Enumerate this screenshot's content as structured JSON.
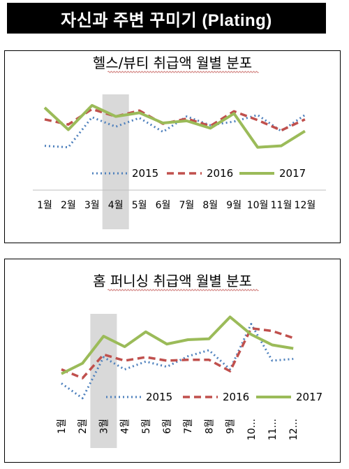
{
  "header": {
    "title": "자신과 주변 꾸미기 (Plating)"
  },
  "colors": {
    "s2015": "#4f81bd",
    "s2016": "#c0504d",
    "s2017": "#9bbb59",
    "highlight": "#d9d9d9"
  },
  "chart_data": [
    {
      "type": "line",
      "title": "헬스/뷰티 취급액 월별 분포",
      "categories": [
        "1월",
        "2월",
        "3월",
        "4월",
        "5월",
        "6월",
        "7월",
        "8월",
        "9월",
        "10월",
        "11월",
        "12월"
      ],
      "highlight_category": "4월",
      "ylim": [
        0,
        100
      ],
      "legend_position": "bottom",
      "series": [
        {
          "name": "2015",
          "values": [
            28,
            26,
            67,
            54,
            66,
            47,
            68,
            56,
            61,
            70,
            48,
            70
          ]
        },
        {
          "name": "2016",
          "values": [
            64,
            57,
            78,
            68,
            76,
            58,
            65,
            55,
            75,
            63,
            49,
            64
          ]
        },
        {
          "name": "2017",
          "values": [
            80,
            50,
            83,
            68,
            73,
            59,
            62,
            52,
            72,
            26,
            28,
            48
          ]
        }
      ]
    },
    {
      "type": "line",
      "title": "홈 퍼니싱 취급액 월별 분포",
      "categories": [
        "1월",
        "2월",
        "3월",
        "4월",
        "5월",
        "6월",
        "7월",
        "8월",
        "9월",
        "10...",
        "11...",
        "12..."
      ],
      "highlight_category": "3월",
      "ylim": [
        0,
        100
      ],
      "legend_position": "bottom",
      "series": [
        {
          "name": "2015",
          "values": [
            22,
            5,
            52,
            38,
            47,
            41,
            53,
            60,
            38,
            90,
            48,
            50
          ]
        },
        {
          "name": "2016",
          "values": [
            38,
            28,
            55,
            48,
            52,
            48,
            49,
            49,
            36,
            85,
            82,
            74
          ]
        },
        {
          "name": "2017",
          "values": [
            33,
            45,
            76,
            64,
            81,
            67,
            72,
            73,
            98,
            78,
            66,
            62
          ]
        }
      ]
    }
  ]
}
